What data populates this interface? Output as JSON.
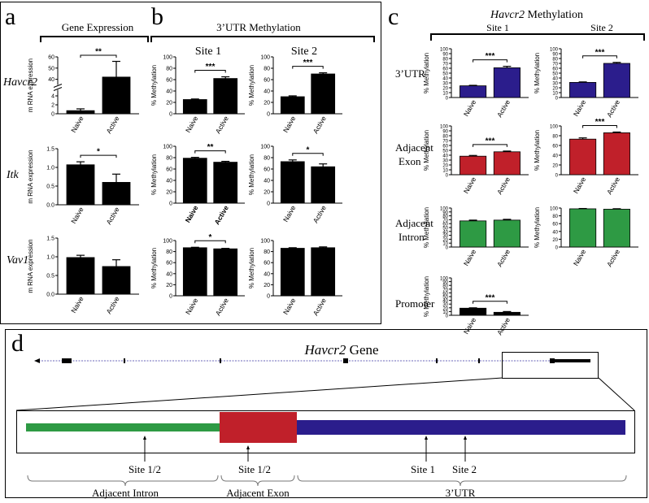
{
  "panels": {
    "a": "a",
    "b": "b",
    "c": "c",
    "d": "d"
  },
  "headers": {
    "gene_expression": "Gene Expression",
    "utr_methylation": "3’UTR Methylation",
    "havcr2_methylation_italic": "Havcr2",
    "havcr2_methylation_rest": " Methylation",
    "site1": "Site 1",
    "site2": "Site 2"
  },
  "row_labels_a": [
    "Havcr2",
    "Itk",
    "Vav1"
  ],
  "row_labels_c": [
    [
      "3’UTR"
    ],
    [
      "Adjacent",
      "Exon"
    ],
    [
      "Adjacent",
      "Intron"
    ],
    [
      "Promoter"
    ]
  ],
  "colors": {
    "black": "#000000",
    "blue": "#2b1d8c",
    "red": "#c0202a",
    "green": "#2e9a44"
  },
  "chart_data": [
    {
      "id": "a1",
      "type": "bar",
      "categories": [
        "Naive",
        "Active"
      ],
      "values": [
        0.7,
        42
      ],
      "errors": [
        0.4,
        14
      ],
      "ylabel": "m RNA expression",
      "ticks": [
        "0",
        "2",
        "4",
        "40",
        "50",
        "60"
      ],
      "axis_break": true,
      "sig": "**",
      "color": "black"
    },
    {
      "id": "a2",
      "type": "bar",
      "categories": [
        "Naive",
        "Active"
      ],
      "values": [
        1.07,
        0.6
      ],
      "errors": [
        0.08,
        0.22
      ],
      "ylabel": "m RNA expression",
      "ylim": [
        0,
        1.5
      ],
      "ticks": [
        "0.0",
        "0.5",
        "1.0",
        "1.5"
      ],
      "sig": "*",
      "color": "black"
    },
    {
      "id": "a3",
      "type": "bar",
      "categories": [
        "Naive",
        "Active"
      ],
      "values": [
        0.98,
        0.74
      ],
      "errors": [
        0.06,
        0.18
      ],
      "ylabel": "m RNA expression",
      "ylim": [
        0,
        1.5
      ],
      "ticks": [
        "0.0",
        "0.5",
        "1.0",
        "1.5"
      ],
      "sig": "",
      "color": "black"
    },
    {
      "id": "b11",
      "type": "bar",
      "categories": [
        "Naive",
        "Active"
      ],
      "values": [
        25,
        62
      ],
      "errors": [
        1,
        3
      ],
      "ylabel": "% Methylation",
      "ylim": [
        0,
        100
      ],
      "ticks": [
        "0",
        "20",
        "40",
        "60",
        "80",
        "100"
      ],
      "sig": "***",
      "color": "black"
    },
    {
      "id": "b12",
      "type": "bar",
      "categories": [
        "Naive",
        "Active"
      ],
      "values": [
        30,
        70
      ],
      "errors": [
        1.5,
        2
      ],
      "ylabel": "% Methylation",
      "ylim": [
        0,
        100
      ],
      "ticks": [
        "0",
        "20",
        "40",
        "60",
        "80",
        "100"
      ],
      "sig": "***",
      "color": "black"
    },
    {
      "id": "b21",
      "type": "bar",
      "categories": [
        "Naive",
        "Active"
      ],
      "values": [
        79,
        72
      ],
      "errors": [
        1.5,
        1.5
      ],
      "ylabel": "% Methylation",
      "ylim": [
        0,
        100
      ],
      "ticks": [
        "0",
        "20",
        "40",
        "60",
        "80",
        "100"
      ],
      "sig": "**",
      "color": "black",
      "bold_ticks": true
    },
    {
      "id": "b22",
      "type": "bar",
      "categories": [
        "Naive",
        "Active"
      ],
      "values": [
        73,
        64
      ],
      "errors": [
        3,
        5
      ],
      "ylabel": "% Methylation",
      "ylim": [
        0,
        100
      ],
      "ticks": [
        "0",
        "20",
        "40",
        "60",
        "80",
        "100"
      ],
      "sig": "*",
      "color": "black"
    },
    {
      "id": "b31",
      "type": "bar",
      "categories": [
        "Naive",
        "Active"
      ],
      "values": [
        87,
        85
      ],
      "errors": [
        0.8,
        0.8
      ],
      "ylabel": "% Methylation",
      "ylim": [
        0,
        100
      ],
      "ticks": [
        "0",
        "20",
        "40",
        "60",
        "80",
        "100"
      ],
      "sig": "*",
      "color": "black"
    },
    {
      "id": "b32",
      "type": "bar",
      "categories": [
        "Naive",
        "Active"
      ],
      "values": [
        86,
        87
      ],
      "errors": [
        1,
        1.5
      ],
      "ylabel": "% Methylation",
      "ylim": [
        0,
        100
      ],
      "ticks": [
        "0",
        "20",
        "40",
        "60",
        "80",
        "100"
      ],
      "sig": "",
      "color": "black"
    },
    {
      "id": "c11",
      "type": "bar",
      "categories": [
        "Naive",
        "Active"
      ],
      "values": [
        24,
        61
      ],
      "errors": [
        1,
        3
      ],
      "ylabel": "% Methylation",
      "ylim": [
        0,
        100
      ],
      "ticks": [
        "0",
        "10",
        "20",
        "30",
        "40",
        "50",
        "60",
        "70",
        "80",
        "90",
        "100"
      ],
      "sig": "***",
      "color": "blue"
    },
    {
      "id": "c12",
      "type": "bar",
      "categories": [
        "Naive",
        "Active"
      ],
      "values": [
        31,
        70
      ],
      "errors": [
        1,
        2
      ],
      "ylabel": "% Methylation",
      "ylim": [
        0,
        100
      ],
      "ticks": [
        "0",
        "10",
        "20",
        "30",
        "40",
        "50",
        "60",
        "70",
        "80",
        "90",
        "100"
      ],
      "sig": "***",
      "color": "blue"
    },
    {
      "id": "c21",
      "type": "bar",
      "categories": [
        "Naive",
        "Active"
      ],
      "values": [
        38,
        47
      ],
      "errors": [
        1.5,
        1.5
      ],
      "ylabel": "% Methylation",
      "ylim": [
        0,
        100
      ],
      "ticks": [
        "0",
        "10",
        "20",
        "30",
        "40",
        "50",
        "60",
        "70",
        "80",
        "90",
        "100"
      ],
      "sig": "***",
      "color": "red"
    },
    {
      "id": "c22",
      "type": "bar",
      "categories": [
        "Naive",
        "Active"
      ],
      "values": [
        73,
        86
      ],
      "errors": [
        2.5,
        1.5
      ],
      "ylabel": "% Methylation",
      "ylim": [
        0,
        100
      ],
      "ticks": [
        "0",
        "20",
        "40",
        "60",
        "80",
        "100"
      ],
      "sig": "***",
      "color": "red"
    },
    {
      "id": "c31",
      "type": "bar",
      "categories": [
        "Naive",
        "Active"
      ],
      "values": [
        67,
        69
      ],
      "errors": [
        2,
        2
      ],
      "ylabel": "% Methylation",
      "ylim": [
        0,
        100
      ],
      "ticks": [
        "0",
        "10",
        "20",
        "30",
        "40",
        "50",
        "60",
        "70",
        "80",
        "90",
        "100"
      ],
      "sig": "",
      "color": "green"
    },
    {
      "id": "c32",
      "type": "bar",
      "categories": [
        "Naive",
        "Active"
      ],
      "values": [
        98,
        97
      ],
      "errors": [
        0.8,
        1.2
      ],
      "ylabel": "% Methylation",
      "ylim": [
        0,
        100
      ],
      "ticks": [
        "0",
        "20",
        "40",
        "60",
        "80",
        "100"
      ],
      "sig": "",
      "color": "green"
    },
    {
      "id": "c41",
      "type": "bar",
      "categories": [
        "Naive",
        "Active"
      ],
      "values": [
        19,
        8
      ],
      "errors": [
        1,
        2
      ],
      "ylabel": "% Methylation",
      "ylim": [
        0,
        100
      ],
      "ticks": [
        "0",
        "10",
        "20",
        "30",
        "40",
        "50",
        "60",
        "70",
        "80",
        "90",
        "100"
      ],
      "sig": "***",
      "color": "black"
    }
  ],
  "gene_diagram": {
    "title_italic": "Havcr2",
    "title_rest": " Gene",
    "site_labels": [
      "Site 1/2",
      "Site 1/2",
      "Site 1",
      "Site 2"
    ],
    "region_labels": [
      "Adjacent Intron",
      "Adjacent Exon",
      "3’UTR"
    ]
  }
}
